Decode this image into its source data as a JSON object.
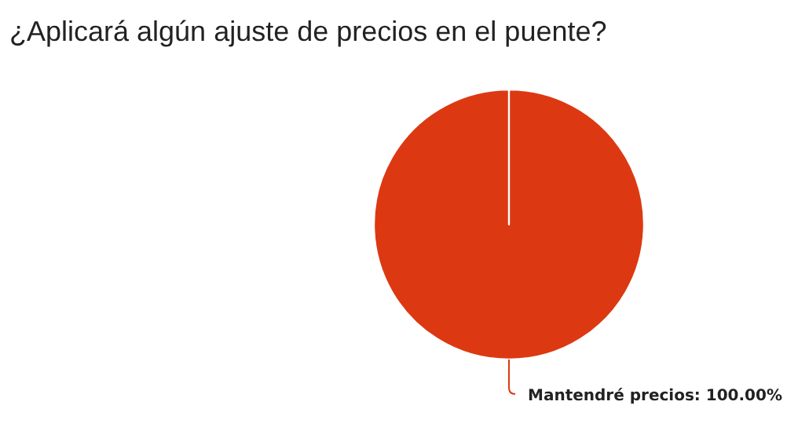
{
  "chart_data": {
    "type": "pie",
    "title": "¿Aplicará algún ajuste de precios en el puente?",
    "categories": [
      "Mantendré precios"
    ],
    "values": [
      100
    ],
    "colors": [
      "#dc3912"
    ],
    "value_labels": [
      "100.00%"
    ]
  }
}
